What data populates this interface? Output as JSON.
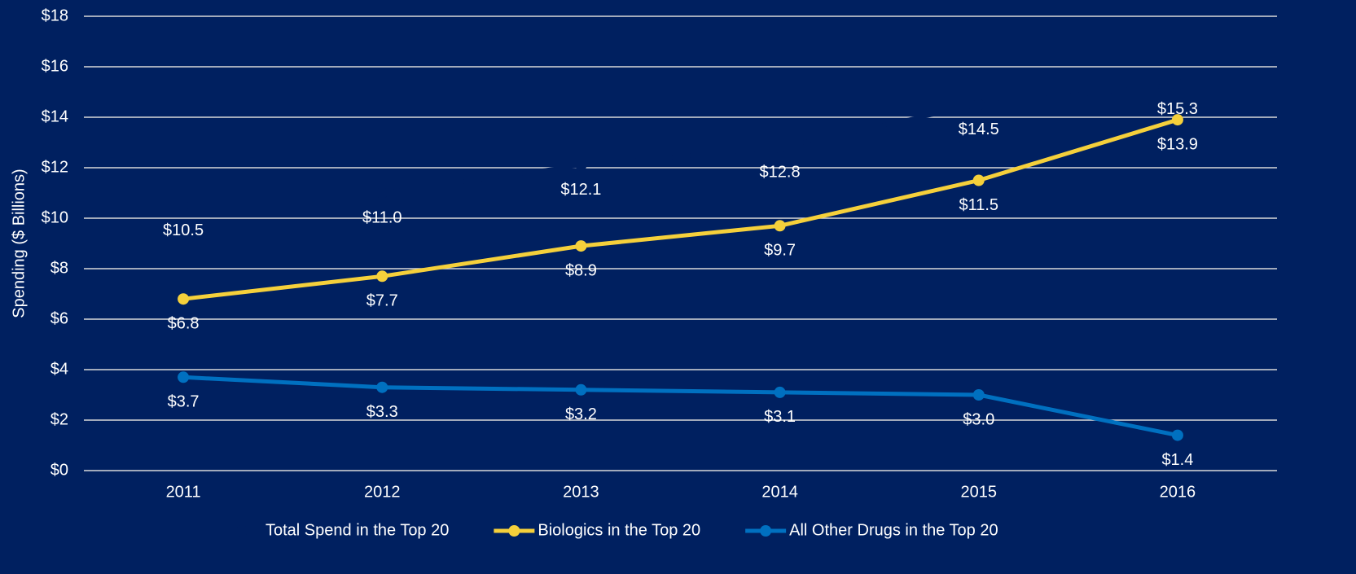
{
  "chart_data": {
    "type": "line",
    "categories": [
      "2011",
      "2012",
      "2013",
      "2014",
      "2015",
      "2016"
    ],
    "series": [
      {
        "name": "Total Spend in the Top 20",
        "color": "#002060",
        "values": [
          10.5,
          11.0,
          12.1,
          12.8,
          14.5,
          15.3
        ],
        "value_labels": [
          "$10.5",
          "$11.0",
          "$12.1",
          "$12.8",
          "$14.5",
          "$15.3"
        ]
      },
      {
        "name": "Biologics in the Top 20",
        "color": "#f5d03b",
        "values": [
          6.8,
          7.7,
          8.9,
          9.7,
          11.5,
          13.9
        ],
        "value_labels": [
          "$6.8",
          "$7.7",
          "$8.9",
          "$9.7",
          "$11.5",
          "$13.9"
        ]
      },
      {
        "name": "All Other Drugs in the Top 20",
        "color": "#0070c0",
        "values": [
          3.7,
          3.3,
          3.2,
          3.1,
          3.0,
          1.4
        ],
        "value_labels": [
          "$3.7",
          "$3.3",
          "$3.2",
          "$3.1",
          "$3.0",
          "$1.4"
        ]
      }
    ],
    "ylabel": "Spending ($ Billions)",
    "ylim": [
      0,
      18
    ],
    "yticks": [
      {
        "value": 0,
        "label": "$0"
      },
      {
        "value": 2,
        "label": "$2"
      },
      {
        "value": 4,
        "label": "$4"
      },
      {
        "value": 6,
        "label": "$6"
      },
      {
        "value": 8,
        "label": "$8"
      },
      {
        "value": 10,
        "label": "$10"
      },
      {
        "value": 12,
        "label": "$12"
      },
      {
        "value": 14,
        "label": "$14"
      },
      {
        "value": 16,
        "label": "$16"
      },
      {
        "value": 18,
        "label": "$18"
      }
    ],
    "grid": true,
    "legend": "bottom"
  }
}
